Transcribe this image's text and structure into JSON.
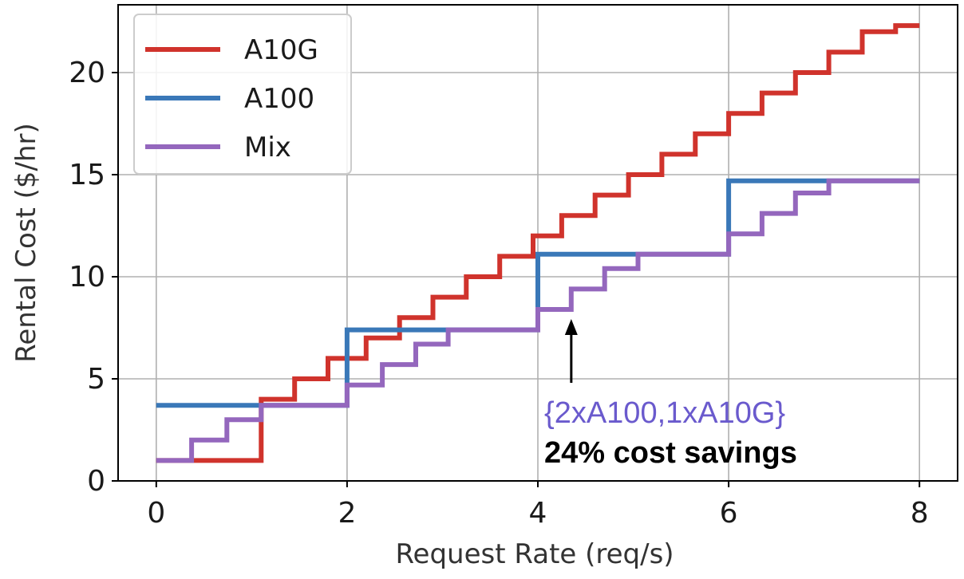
{
  "chart_data": {
    "type": "line",
    "step": true,
    "title": "",
    "xlabel": "Request Rate (req/s)",
    "ylabel": "Rental Cost ($/hr)",
    "xlim": [
      0,
      8
    ],
    "ylim": [
      0,
      23
    ],
    "x_ticks": [
      0,
      2,
      4,
      6,
      8
    ],
    "y_ticks": [
      0,
      5,
      10,
      15,
      20
    ],
    "grid": true,
    "legend_position": "top-left",
    "series": [
      {
        "name": "A10G",
        "color": "#d0332c",
        "points": [
          [
            0.0,
            1.0
          ],
          [
            1.1,
            1.0
          ],
          [
            1.1,
            4.0
          ],
          [
            1.45,
            4.0
          ],
          [
            1.45,
            5.0
          ],
          [
            1.8,
            5.0
          ],
          [
            1.8,
            6.0
          ],
          [
            2.2,
            6.0
          ],
          [
            2.2,
            7.0
          ],
          [
            2.55,
            7.0
          ],
          [
            2.55,
            8.0
          ],
          [
            2.9,
            8.0
          ],
          [
            2.9,
            9.0
          ],
          [
            3.25,
            9.0
          ],
          [
            3.25,
            10.0
          ],
          [
            3.6,
            10.0
          ],
          [
            3.6,
            11.0
          ],
          [
            3.95,
            11.0
          ],
          [
            3.95,
            12.0
          ],
          [
            4.25,
            12.0
          ],
          [
            4.25,
            13.0
          ],
          [
            4.6,
            13.0
          ],
          [
            4.6,
            14.0
          ],
          [
            4.95,
            14.0
          ],
          [
            4.95,
            15.0
          ],
          [
            5.3,
            15.0
          ],
          [
            5.3,
            16.0
          ],
          [
            5.65,
            16.0
          ],
          [
            5.65,
            17.0
          ],
          [
            6.0,
            17.0
          ],
          [
            6.0,
            18.0
          ],
          [
            6.35,
            18.0
          ],
          [
            6.35,
            19.0
          ],
          [
            6.7,
            19.0
          ],
          [
            6.7,
            20.0
          ],
          [
            7.05,
            20.0
          ],
          [
            7.05,
            21.0
          ],
          [
            7.4,
            21.0
          ],
          [
            7.4,
            22.0
          ],
          [
            7.75,
            22.0
          ],
          [
            7.75,
            22.3
          ],
          [
            8.0,
            22.3
          ]
        ]
      },
      {
        "name": "A100",
        "color": "#3a78b8",
        "points": [
          [
            0.0,
            3.7
          ],
          [
            2.0,
            3.7
          ],
          [
            2.0,
            7.4
          ],
          [
            4.0,
            7.4
          ],
          [
            4.0,
            11.1
          ],
          [
            6.0,
            11.1
          ],
          [
            6.0,
            14.7
          ],
          [
            8.0,
            14.7
          ]
        ]
      },
      {
        "name": "Mix",
        "color": "#9467bd",
        "points": [
          [
            0.0,
            1.0
          ],
          [
            0.37,
            1.0
          ],
          [
            0.37,
            2.0
          ],
          [
            0.74,
            2.0
          ],
          [
            0.74,
            3.0
          ],
          [
            1.1,
            3.0
          ],
          [
            1.1,
            3.7
          ],
          [
            2.0,
            3.7
          ],
          [
            2.0,
            4.7
          ],
          [
            2.37,
            4.7
          ],
          [
            2.37,
            5.7
          ],
          [
            2.72,
            5.7
          ],
          [
            2.72,
            6.7
          ],
          [
            3.06,
            6.7
          ],
          [
            3.06,
            7.4
          ],
          [
            4.0,
            7.4
          ],
          [
            4.0,
            8.4
          ],
          [
            4.35,
            8.4
          ],
          [
            4.35,
            9.4
          ],
          [
            4.7,
            9.4
          ],
          [
            4.7,
            10.4
          ],
          [
            5.05,
            10.4
          ],
          [
            5.05,
            11.1
          ],
          [
            6.0,
            11.1
          ],
          [
            6.0,
            12.1
          ],
          [
            6.35,
            12.1
          ],
          [
            6.35,
            13.1
          ],
          [
            6.7,
            13.1
          ],
          [
            6.7,
            14.1
          ],
          [
            7.05,
            14.1
          ],
          [
            7.05,
            14.7
          ],
          [
            8.0,
            14.7
          ]
        ]
      }
    ],
    "annotations": [
      {
        "kind": "arrow",
        "target": [
          4.35,
          8.4
        ],
        "lines": [
          {
            "text": "{2xA100,1xA10G}",
            "style": "config"
          },
          {
            "text": "24% cost savings",
            "style": "savings"
          }
        ]
      }
    ]
  }
}
